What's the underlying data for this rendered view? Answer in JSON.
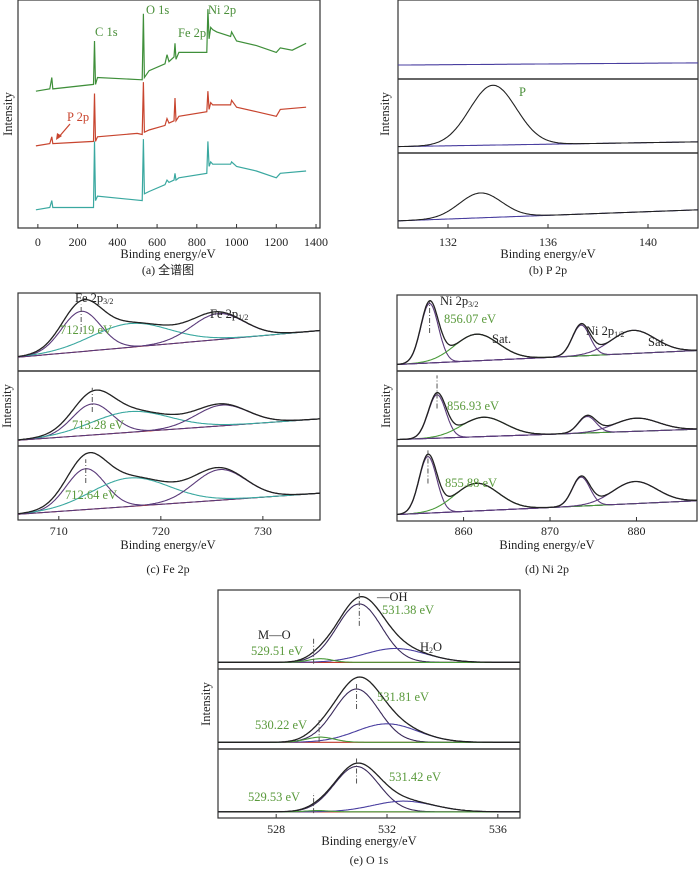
{
  "chart_data": [
    {
      "type": "line",
      "panel": "a",
      "caption": "(a) 全谱图",
      "xlabel": "Binding energy/eV",
      "ylabel": "Intensity",
      "xlim": [
        -100,
        1420
      ],
      "ylim": [
        0,
        100
      ],
      "xticks": [
        0,
        200,
        400,
        600,
        800,
        1000,
        1200,
        1400
      ],
      "series": [
        {
          "color": "#3f8f3a",
          "points": [
            [
              -10,
              60
            ],
            [
              60,
              61
            ],
            [
              70,
              66
            ],
            [
              75,
              61
            ],
            [
              280,
              63
            ],
            [
              285,
              82
            ],
            [
              290,
              63
            ],
            [
              300,
              66
            ],
            [
              525,
              65
            ],
            [
              531,
              94
            ],
            [
              536,
              66
            ],
            [
              560,
              69
            ],
            [
              640,
              72
            ],
            [
              650,
              76
            ],
            [
              660,
              73
            ],
            [
              685,
              75
            ],
            [
              690,
              81
            ],
            [
              695,
              74
            ],
            [
              710,
              77
            ],
            [
              850,
              77
            ],
            [
              856,
              96
            ],
            [
              862,
              83
            ],
            [
              870,
              88
            ],
            [
              880,
              87
            ],
            [
              900,
              86
            ],
            [
              970,
              84
            ],
            [
              975,
              86
            ],
            [
              1000,
              82
            ],
            [
              1100,
              80
            ],
            [
              1200,
              77
            ],
            [
              1220,
              79
            ],
            [
              1280,
              78
            ],
            [
              1350,
              81
            ]
          ]
        },
        {
          "color": "#c8452f",
          "points": [
            [
              -10,
              36
            ],
            [
              60,
              37
            ],
            [
              70,
              40
            ],
            [
              75,
              37
            ],
            [
              280,
              38
            ],
            [
              285,
              59
            ],
            [
              290,
              38
            ],
            [
              300,
              40
            ],
            [
              500,
              41.5
            ],
            [
              525,
              41
            ],
            [
              531,
              64
            ],
            [
              536,
              42
            ],
            [
              560,
              43
            ],
            [
              640,
              45
            ],
            [
              650,
              48
            ],
            [
              660,
              46
            ],
            [
              685,
              47
            ],
            [
              690,
              57
            ],
            [
              695,
              47
            ],
            [
              710,
              49
            ],
            [
              850,
              51
            ],
            [
              856,
              60
            ],
            [
              862,
              52
            ],
            [
              870,
              55
            ],
            [
              880,
              54
            ],
            [
              970,
              54
            ],
            [
              975,
              56
            ],
            [
              1000,
              53
            ],
            [
              1100,
              51
            ],
            [
              1200,
              49
            ],
            [
              1220,
              52
            ],
            [
              1350,
              53
            ]
          ]
        },
        {
          "color": "#3aa8a0",
          "points": [
            [
              -10,
              8
            ],
            [
              60,
              9
            ],
            [
              70,
              12
            ],
            [
              75,
              9
            ],
            [
              280,
              9
            ],
            [
              285,
              38
            ],
            [
              290,
              12
            ],
            [
              300,
              14
            ],
            [
              525,
              12
            ],
            [
              531,
              39
            ],
            [
              536,
              15
            ],
            [
              560,
              16
            ],
            [
              640,
              19
            ],
            [
              650,
              21
            ],
            [
              660,
              20
            ],
            [
              685,
              21
            ],
            [
              690,
              24
            ],
            [
              695,
              21
            ],
            [
              710,
              22
            ],
            [
              850,
              24
            ],
            [
              856,
              38
            ],
            [
              862,
              27
            ],
            [
              870,
              29
            ],
            [
              880,
              28
            ],
            [
              970,
              28
            ],
            [
              975,
              29
            ],
            [
              1000,
              27
            ],
            [
              1100,
              25
            ],
            [
              1200,
              22
            ],
            [
              1220,
              24
            ],
            [
              1350,
              25
            ]
          ]
        }
      ],
      "annotations": [
        {
          "text": "C 1s",
          "color": "#4a8f3a"
        },
        {
          "text": "O 1s",
          "color": "#4a8f3a"
        },
        {
          "text": "Fe 2p",
          "color": "#4a8f3a"
        },
        {
          "text": "Ni 2p",
          "color": "#4a8f3a"
        },
        {
          "text": "P 2p",
          "color": "#c8452f"
        }
      ]
    },
    {
      "type": "line",
      "panel": "b",
      "caption": "(b) P 2p",
      "xlabel": "Binding energy/eV",
      "ylabel": "Intensity",
      "xlim": [
        130,
        142
      ],
      "xticks": [
        132,
        136,
        140
      ],
      "subplots": [
        {
          "baseline": {
            "from": 0.15,
            "to": 0.18,
            "color": "#4a3fa0"
          },
          "components": [],
          "markers": []
        },
        {
          "baseline": {
            "from": 0.05,
            "to": 0.12,
            "color": "#4a3fa0"
          },
          "components": [
            {
              "center": 133.8,
              "height": 0.88,
              "fwhm": 2.2,
              "color": "#222222"
            }
          ],
          "envelope": false,
          "markers": []
        },
        {
          "baseline": {
            "from": 0.06,
            "to": 0.22,
            "color": "#4a3fa0"
          },
          "components": [
            {
              "center": 133.3,
              "height": 0.36,
              "fwhm": 2.0,
              "color": "#222222"
            }
          ],
          "envelope": false,
          "markers": []
        }
      ],
      "annotations": [
        {
          "text": "P",
          "color": "#4a8f3a"
        }
      ]
    },
    {
      "type": "line",
      "panel": "c",
      "caption": "(c) Fe 2p",
      "xlabel": "Binding energy/eV",
      "ylabel": "Intensity",
      "xlim": [
        706,
        735.6
      ],
      "xticks": [
        710,
        720,
        730
      ],
      "subplots": [
        {
          "baseline": {
            "from": 0.15,
            "to": 0.52,
            "color": "#c0392b"
          },
          "envelope": true,
          "components": [
            {
              "center": 712.19,
              "height": 0.56,
              "fwhm": 4.5,
              "color": "#5a3a7a"
            },
            {
              "center": 717.0,
              "height": 0.33,
              "fwhm": 9,
              "color": "#3aa8a0"
            },
            {
              "center": 725.6,
              "height": 0.36,
              "fwhm": 6,
              "color": "#5a3a7a"
            }
          ],
          "markers": [
            {
              "x": 712.19,
              "from": 0.5,
              "to": 0.88
            }
          ]
        },
        {
          "baseline": {
            "from": 0.04,
            "to": 0.35,
            "color": "#c0392b"
          },
          "envelope": true,
          "components": [
            {
              "center": 713.28,
              "height": 0.45,
              "fwhm": 4.6,
              "color": "#5a3a7a"
            },
            {
              "center": 717.0,
              "height": 0.3,
              "fwhm": 9,
              "color": "#3aa8a0"
            },
            {
              "center": 726.0,
              "height": 0.3,
              "fwhm": 6,
              "color": "#5a3a7a"
            }
          ],
          "markers": [
            {
              "x": 713.28,
              "from": 0.45,
              "to": 0.8
            }
          ]
        },
        {
          "baseline": {
            "from": 0.04,
            "to": 0.35,
            "color": "#c0392b"
          },
          "envelope": true,
          "components": [
            {
              "center": 712.64,
              "height": 0.6,
              "fwhm": 4.5,
              "color": "#5a3a7a"
            },
            {
              "center": 717.0,
              "height": 0.42,
              "fwhm": 9,
              "color": "#3aa8a0"
            },
            {
              "center": 725.8,
              "height": 0.45,
              "fwhm": 6,
              "color": "#5a3a7a"
            }
          ],
          "markers": [
            {
              "x": 712.64,
              "from": 0.5,
              "to": 0.85
            }
          ]
        }
      ],
      "annotations": [
        {
          "text": "Fe 2p",
          "sub": "3/2",
          "color": "#222222"
        },
        {
          "text": "Fe 2p",
          "sub": "1/2",
          "color": "#222222"
        },
        {
          "text": "712.19 eV",
          "color": "#5a9a3c"
        },
        {
          "text": "713.28 eV",
          "color": "#5a9a3c"
        },
        {
          "text": "712.64 eV",
          "color": "#5a9a3c"
        }
      ]
    },
    {
      "type": "line",
      "panel": "d",
      "caption": "(d) Ni 2p",
      "xlabel": "Binding energy/eV",
      "ylabel": "Intensity",
      "xlim": [
        852.3,
        887
      ],
      "xticks": [
        860,
        870,
        880
      ],
      "subplots": [
        {
          "baseline": {
            "from": 0.05,
            "to": 0.25,
            "color": "#4a3fa0"
          },
          "envelope": true,
          "components": [
            {
              "center": 856.07,
              "height": 0.85,
              "fwhm": 2.4,
              "color": "#5a3a7a"
            },
            {
              "center": 861.5,
              "height": 0.38,
              "fwhm": 6,
              "color": "#4a9a3a"
            },
            {
              "center": 873.6,
              "height": 0.44,
              "fwhm": 2.4,
              "color": "#5a3a7a"
            },
            {
              "center": 879.6,
              "height": 0.33,
              "fwhm": 6,
              "color": "#5a3a7a"
            }
          ],
          "markers": [
            {
              "x": 856.07,
              "from": 0.5,
              "to": 0.95
            }
          ]
        },
        {
          "baseline": {
            "from": 0.05,
            "to": 0.2,
            "color": "#4a3fa0"
          },
          "envelope": true,
          "components": [
            {
              "center": 856.93,
              "height": 0.63,
              "fwhm": 2.4,
              "color": "#5a3a7a"
            },
            {
              "center": 862.3,
              "height": 0.28,
              "fwhm": 6,
              "color": "#4a9a3a"
            },
            {
              "center": 874.3,
              "height": 0.24,
              "fwhm": 2.4,
              "color": "#5a3a7a"
            },
            {
              "center": 880.0,
              "height": 0.19,
              "fwhm": 6,
              "color": "#5a3a7a"
            }
          ],
          "markers": [
            {
              "x": 856.93,
              "from": 0.5,
              "to": 0.98
            }
          ]
        },
        {
          "baseline": {
            "from": 0.05,
            "to": 0.25,
            "color": "#4a3fa0"
          },
          "envelope": true,
          "components": [
            {
              "center": 855.88,
              "height": 0.82,
              "fwhm": 2.4,
              "color": "#5a3a7a"
            },
            {
              "center": 861.5,
              "height": 0.4,
              "fwhm": 6,
              "color": "#4a9a3a"
            },
            {
              "center": 873.6,
              "height": 0.42,
              "fwhm": 2.4,
              "color": "#5a3a7a"
            },
            {
              "center": 879.8,
              "height": 0.32,
              "fwhm": 6,
              "color": "#5a3a7a"
            }
          ],
          "markers": [
            {
              "x": 855.88,
              "from": 0.5,
              "to": 0.98
            }
          ]
        }
      ],
      "annotations": [
        {
          "text": "Ni 2p",
          "sub": "3/2",
          "color": "#222222"
        },
        {
          "text": "856.07 eV",
          "color": "#5a9a3c"
        },
        {
          "text": "Sat.",
          "color": "#222222"
        },
        {
          "text": "Ni 2p",
          "sub": "1/2",
          "color": "#222222"
        },
        {
          "text": "Sat.",
          "color": "#222222"
        },
        {
          "text": "856.93 eV",
          "color": "#5a9a3c"
        },
        {
          "text": "855.88 eV",
          "color": "#5a9a3c"
        }
      ]
    },
    {
      "type": "line",
      "panel": "e",
      "caption": "(e) O 1s",
      "xlabel": "Binding energy/eV",
      "ylabel": "Intensity",
      "xlim": [
        525.9,
        536.8
      ],
      "xticks": [
        528,
        532,
        536
      ],
      "subplots": [
        {
          "baseline": {
            "from": 0.05,
            "to": 0.05,
            "color": "#c0392b"
          },
          "envelope": true,
          "components": [
            {
              "center": 531.0,
              "height": 0.8,
              "fwhm": 1.9,
              "color": "#3a2a5a"
            },
            {
              "center": 532.3,
              "height": 0.19,
              "fwhm": 2.6,
              "color": "#4a3fa0"
            },
            {
              "center": 529.6,
              "height": 0.05,
              "fwhm": 1.0,
              "color": "#4a9a3a"
            }
          ],
          "markers": [
            {
              "x": 531.0,
              "from": 0.55,
              "to": 1.0
            },
            {
              "x": 529.35,
              "from": 0.03,
              "to": 0.4
            }
          ]
        },
        {
          "baseline": {
            "from": 0.05,
            "to": 0.05,
            "color": "#c0392b"
          },
          "envelope": true,
          "components": [
            {
              "center": 530.9,
              "height": 0.72,
              "fwhm": 1.9,
              "color": "#3a2a5a"
            },
            {
              "center": 532.0,
              "height": 0.25,
              "fwhm": 2.6,
              "color": "#4a3fa0"
            },
            {
              "center": 529.6,
              "height": 0.07,
              "fwhm": 1.2,
              "color": "#4a9a3a"
            }
          ],
          "markers": [
            {
              "x": 530.9,
              "from": 0.5,
              "to": 0.85
            },
            {
              "x": 529.55,
              "from": 0.05,
              "to": 0.35
            }
          ]
        },
        {
          "baseline": {
            "from": 0.05,
            "to": 0.05,
            "color": "#c0392b"
          },
          "envelope": true,
          "components": [
            {
              "center": 530.9,
              "height": 0.72,
              "fwhm": 1.9,
              "color": "#3a2a5a"
            },
            {
              "center": 532.6,
              "height": 0.17,
              "fwhm": 2.6,
              "color": "#4a3fa0"
            },
            {
              "center": 529.5,
              "height": 0.02,
              "fwhm": 1.0,
              "color": "#4a9a3a"
            }
          ],
          "markers": [
            {
              "x": 530.9,
              "from": 0.5,
              "to": 0.9
            },
            {
              "x": 529.35,
              "from": 0.03,
              "to": 0.35
            }
          ]
        }
      ],
      "annotations": [
        {
          "text": "—OH",
          "color": "#222222"
        },
        {
          "text": "531.38 eV",
          "color": "#5a9a3c"
        },
        {
          "text": "M—O",
          "color": "#222222"
        },
        {
          "text": "529.51 eV",
          "color": "#5a9a3c"
        },
        {
          "text": "H",
          "sub": "2",
          "tail": "O",
          "color": "#222222"
        },
        {
          "text": "531.81 eV",
          "color": "#5a9a3c"
        },
        {
          "text": "530.22 eV",
          "color": "#5a9a3c"
        },
        {
          "text": "531.42 eV",
          "color": "#5a9a3c"
        },
        {
          "text": "529.53 eV",
          "color": "#5a9a3c"
        }
      ]
    }
  ]
}
